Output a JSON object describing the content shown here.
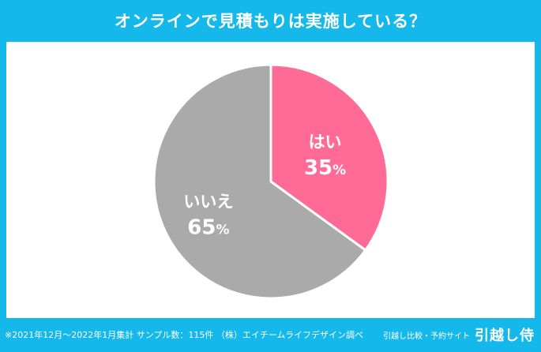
{
  "title": "オンラインで見積もりは実施している？",
  "footnote": "※2021年12月〜2022年1月集計 サンプル数：115件 （株）エイチームライフデザイン調べ",
  "brand": {
    "tagline": "引越し比較・予約サイト",
    "name": "引越し侍"
  },
  "colors": {
    "background": "#14b8ea",
    "yes": "#ff6a96",
    "no": "#aaaaaa"
  },
  "chart_data": {
    "type": "pie",
    "title": "オンラインで見積もりは実施している？",
    "categories": [
      "はい",
      "いいえ"
    ],
    "values": [
      35,
      65
    ],
    "labels": [
      "35%",
      "65%"
    ],
    "unit": "%"
  }
}
